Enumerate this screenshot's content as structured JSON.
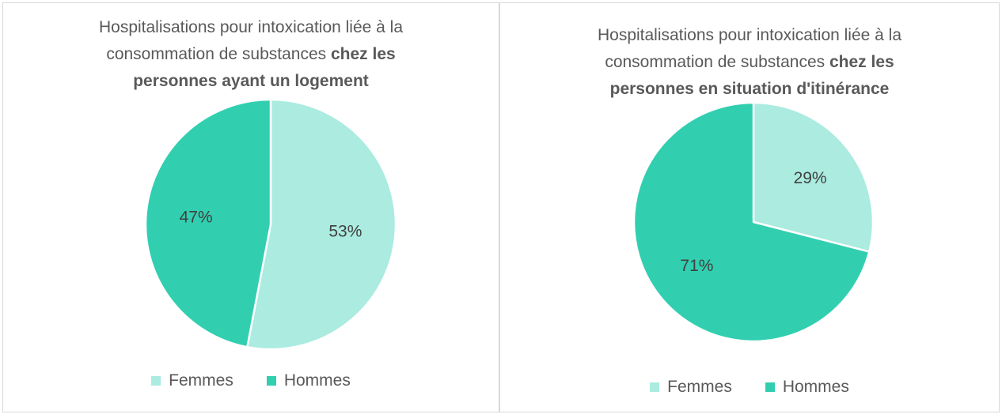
{
  "colors": {
    "femmes": "#abebe0",
    "hommes": "#31cfb0"
  },
  "chart_data": [
    {
      "type": "pie",
      "title_parts": [
        "Hospitalisations pour intoxication liée à la",
        "consommation de substances ",
        "chez les",
        "personnes ayant un logement"
      ],
      "categories": [
        "Femmes",
        "Hommes"
      ],
      "values": [
        53,
        47
      ],
      "labels": [
        "53%",
        "47%"
      ],
      "legend": "bottom"
    },
    {
      "type": "pie",
      "title_parts": [
        "Hospitalisations pour intoxication liée à la",
        "consommation de substances ",
        "chez les",
        "personnes en situation d'itinérance"
      ],
      "categories": [
        "Femmes",
        "Hommes"
      ],
      "values": [
        29,
        71
      ],
      "labels": [
        "29%",
        "71%"
      ],
      "legend": "bottom"
    }
  ]
}
